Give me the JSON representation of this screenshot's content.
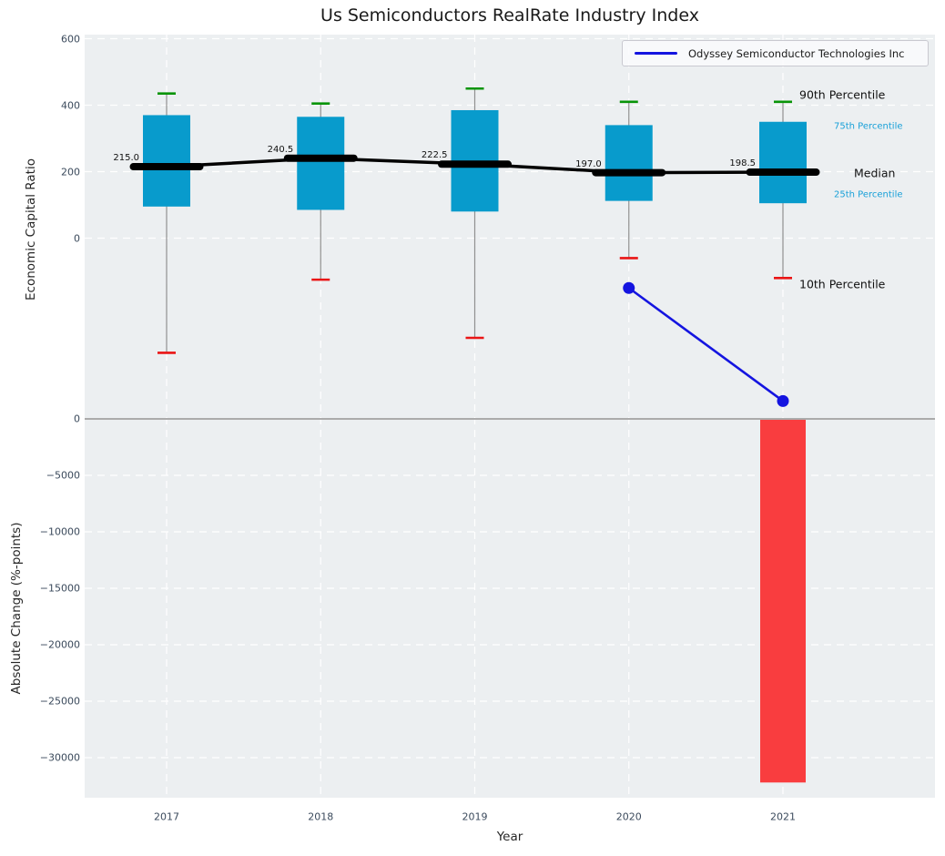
{
  "title": "Us Semiconductors RealRate Industry Index",
  "colors": {
    "plot_bg": "#eceff1",
    "grid": "#ffffff",
    "box_fill": "#089bcc",
    "whisker": "#909090",
    "cap_top_green": "#089408",
    "cap_bottom_red": "#ea1515",
    "median_black": "#000000",
    "odyssey_blue": "#1414e0",
    "bar_red": "#f93d3f",
    "zero_line_gray": "#ababab",
    "tick_label": "#3b4a5c",
    "accent_text_blue": "#18a0d8"
  },
  "legend": {
    "label": "Odyssey Semiconductor Technologies Inc",
    "position": "upper right"
  },
  "xlabel": "Year",
  "chart_data": [
    {
      "type": "boxplot",
      "title": "Us Semiconductors RealRate Industry Index",
      "ylabel": "Economic Capital Ratio",
      "xlabel": "Year",
      "categories": [
        "2017",
        "2018",
        "2019",
        "2020",
        "2021"
      ],
      "x_values": [
        2017,
        2018,
        2019,
        2020,
        2021
      ],
      "yticks": [
        "600",
        "400",
        "200",
        "0"
      ],
      "ytick_values": [
        600,
        400,
        200,
        0
      ],
      "ylim": [
        -545,
        612
      ],
      "grid": true,
      "legend_position": "upper right",
      "percentiles": {
        "p90": [
          435,
          405,
          450,
          410,
          410
        ],
        "p75": [
          370,
          365,
          385,
          340,
          350
        ],
        "median": [
          215.0,
          240.5,
          222.5,
          197.0,
          198.5
        ],
        "p25": [
          95,
          85,
          80,
          112,
          105
        ],
        "p10": [
          -345,
          -125,
          -300,
          -60,
          -120
        ]
      },
      "median_labels": [
        "215.0",
        "240.5",
        "222.5",
        "197.0",
        "198.5"
      ],
      "series": [
        {
          "name": "Odyssey Semiconductor Technologies Inc",
          "type": "line",
          "x": [
            2020,
            2021
          ],
          "values": [
            -150,
            -490
          ]
        }
      ],
      "annotations": [
        {
          "label": "90th Percentile",
          "style": "black-large"
        },
        {
          "label": "75th Percentile",
          "style": "blue-small"
        },
        {
          "label": "Median",
          "style": "black-large"
        },
        {
          "label": "25th Percentile",
          "style": "blue-small"
        },
        {
          "label": "10th Percentile",
          "style": "black-large"
        }
      ]
    },
    {
      "type": "bar",
      "ylabel": "Absolute Change (%-points)",
      "categories": [
        "2017",
        "2018",
        "2019",
        "2020",
        "2021"
      ],
      "values": [
        null,
        null,
        null,
        null,
        -32200
      ],
      "yticks": [
        "0",
        "−5000",
        "−10000",
        "−15000",
        "−20000",
        "−25000",
        "−30000"
      ],
      "ytick_values": [
        0,
        -5000,
        -10000,
        -15000,
        -20000,
        -25000,
        -30000
      ],
      "ylim": [
        -33500,
        0
      ],
      "grid": true
    }
  ]
}
